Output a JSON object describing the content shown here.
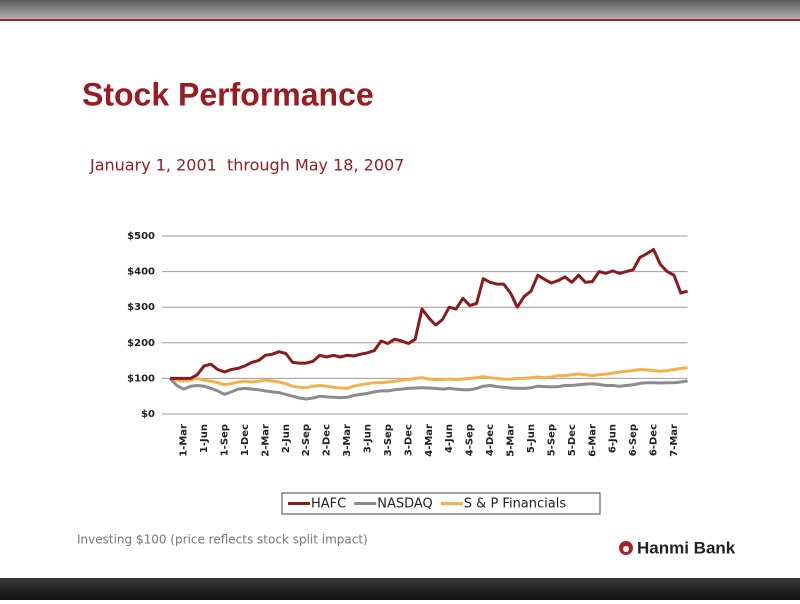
{
  "chart_data": {
    "type": "line",
    "title": "Stock Performance",
    "subtitle": "January 1, 2001  through May 18, 2007",
    "categories": [
      null,
      null,
      "1-Mar",
      null,
      null,
      "1-Jun",
      null,
      null,
      "1-Sep",
      null,
      null,
      "1-Dec",
      null,
      null,
      "2-Mar",
      null,
      null,
      "2-Jun",
      null,
      null,
      "2-Sep",
      null,
      null,
      "2-Dec",
      null,
      null,
      "3-Mar",
      null,
      null,
      "3-Jun",
      null,
      null,
      "3-Sep",
      null,
      null,
      "3-Dec",
      null,
      null,
      "4-Mar",
      null,
      null,
      "4-Jun",
      null,
      null,
      "4-Sep",
      null,
      null,
      "4-Dec",
      null,
      null,
      "5-Mar",
      null,
      null,
      "5-Jun",
      null,
      null,
      "5-Sep",
      null,
      null,
      "5-Dec",
      null,
      null,
      "6-Mar",
      null,
      null,
      "6-Jun",
      null,
      null,
      "6-Sep",
      null,
      null,
      "6-Dec",
      null,
      null,
      "7-Mar",
      null,
      null
    ],
    "series": [
      {
        "name": "HAFC",
        "color": "#8b1a1f",
        "values": [
          100,
          100,
          100,
          100,
          110,
          135,
          140,
          125,
          118,
          125,
          128,
          135,
          145,
          150,
          165,
          168,
          175,
          170,
          145,
          143,
          143,
          148,
          165,
          160,
          165,
          160,
          165,
          163,
          168,
          172,
          178,
          205,
          198,
          210,
          205,
          198,
          210,
          295,
          270,
          250,
          265,
          300,
          295,
          325,
          305,
          310,
          380,
          370,
          365,
          365,
          340,
          300,
          330,
          345,
          390,
          378,
          368,
          375,
          385,
          370,
          390,
          370,
          372,
          400,
          395,
          402,
          395,
          400,
          405,
          440,
          450,
          462,
          420,
          400,
          390,
          340,
          345
        ]
      },
      {
        "name": "NASDAQ",
        "color": "#8c8c8c",
        "values": [
          100,
          80,
          70,
          78,
          80,
          78,
          72,
          65,
          55,
          62,
          70,
          72,
          70,
          68,
          65,
          62,
          60,
          55,
          50,
          45,
          42,
          45,
          50,
          48,
          47,
          46,
          47,
          52,
          55,
          58,
          62,
          65,
          65,
          68,
          70,
          72,
          73,
          74,
          73,
          72,
          70,
          72,
          70,
          68,
          68,
          72,
          78,
          80,
          77,
          75,
          73,
          72,
          72,
          74,
          78,
          77,
          76,
          77,
          80,
          80,
          82,
          84,
          85,
          83,
          80,
          80,
          78,
          80,
          82,
          86,
          88,
          88,
          87,
          88,
          88,
          90,
          93
        ]
      },
      {
        "name": "S & P Financials",
        "color": "#f5b04a",
        "values": [
          100,
          95,
          92,
          95,
          100,
          95,
          92,
          88,
          82,
          85,
          90,
          92,
          90,
          92,
          95,
          93,
          90,
          85,
          78,
          75,
          74,
          78,
          80,
          78,
          75,
          73,
          72,
          78,
          82,
          85,
          88,
          88,
          90,
          92,
          95,
          97,
          100,
          102,
          98,
          96,
          97,
          98,
          97,
          98,
          100,
          102,
          105,
          102,
          100,
          98,
          98,
          100,
          100,
          102,
          104,
          102,
          104,
          108,
          108,
          110,
          112,
          110,
          108,
          110,
          112,
          115,
          118,
          120,
          122,
          125,
          124,
          122,
          120,
          122,
          125,
          128,
          130
        ]
      }
    ],
    "ylim": [
      0,
      500
    ],
    "yticks": [
      {
        "value": 0,
        "label": "$0"
      },
      {
        "value": 100,
        "label": "$100"
      },
      {
        "value": 200,
        "label": "$200"
      },
      {
        "value": 300,
        "label": "$300"
      },
      {
        "value": 400,
        "label": "$400"
      },
      {
        "value": 500,
        "label": "$500"
      }
    ],
    "grid": true,
    "legend": "bottom"
  },
  "footnote": "Investing $100 (price reflects stock split impact)",
  "logo": "Hanmi Bank"
}
